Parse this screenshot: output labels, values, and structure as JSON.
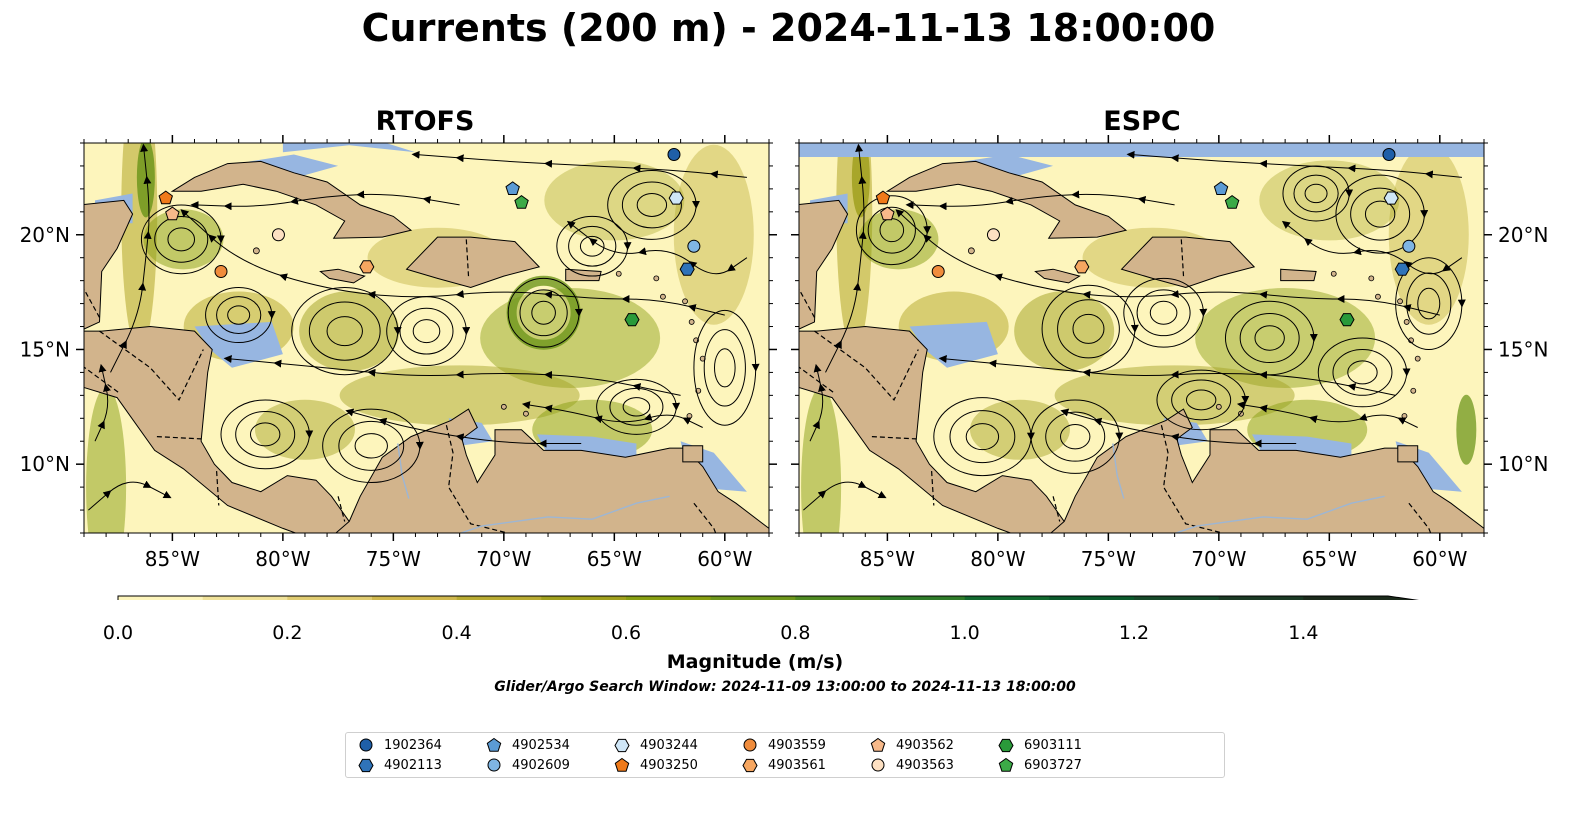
{
  "title": "Currents (200 m) - 2024-11-13 18:00:00",
  "panels": [
    {
      "title": "RTOFS"
    },
    {
      "title": "ESPC"
    }
  ],
  "map": {
    "lon_range": [
      -89,
      -58
    ],
    "lat_range": [
      7,
      24
    ],
    "lon_ticks": [
      "85°W",
      "80°W",
      "75°W",
      "70°W",
      "65°W",
      "60°W"
    ],
    "lat_ticks": [
      "20°N",
      "15°N",
      "10°N"
    ],
    "land_color": "#d2b48c",
    "shelf_color": "#97b6e1",
    "ocean_low_color": "#fdf5bc"
  },
  "colorbar": {
    "label": "Magnitude (m/s)",
    "ticks": [
      "0.0",
      "0.2",
      "0.4",
      "0.6",
      "0.8",
      "1.0",
      "1.2",
      "1.4"
    ],
    "range": [
      0,
      1.5
    ],
    "extend": "max",
    "colors": [
      "#fdf5bc",
      "#f0e29a",
      "#e0cc72",
      "#d0b84e",
      "#b8ab33",
      "#a0a01e",
      "#879e12",
      "#6e961c",
      "#4f8a22",
      "#2f7c2a",
      "#12692f",
      "#0c5a2c",
      "#174a2a",
      "#1b3a25",
      "#1c2b1c"
    ]
  },
  "search_window": "Glider/Argo Search Window: 2024-11-09 13:00:00 to 2024-11-13 18:00:00",
  "legend": [
    {
      "id": "1902364",
      "marker": "circle",
      "color": "#1f5fa8"
    },
    {
      "id": "4902113",
      "marker": "hexagon",
      "color": "#2f73b9"
    },
    {
      "id": "4902534",
      "marker": "pentagon",
      "color": "#5b9bd5"
    },
    {
      "id": "4902609",
      "marker": "circle",
      "color": "#7fb5e3"
    },
    {
      "id": "4903244",
      "marker": "hexagon",
      "color": "#cfe6f7"
    },
    {
      "id": "4903250",
      "marker": "pentagon",
      "color": "#f07a1a"
    },
    {
      "id": "4903559",
      "marker": "circle",
      "color": "#f08c3c"
    },
    {
      "id": "4903561",
      "marker": "hexagon",
      "color": "#f6a660"
    },
    {
      "id": "4903562",
      "marker": "pentagon",
      "color": "#f7b98a"
    },
    {
      "id": "4903563",
      "marker": "circle",
      "color": "#fde0c2"
    },
    {
      "id": "6903111",
      "marker": "hexagon",
      "color": "#2a9a3a"
    },
    {
      "id": "6903727",
      "marker": "pentagon",
      "color": "#3caa47"
    }
  ],
  "floats": {
    "RTOFS": [
      {
        "id": "1902364",
        "lon": -62.3,
        "lat": 23.5
      },
      {
        "id": "4903244",
        "lon": -62.2,
        "lat": 21.6
      },
      {
        "id": "4902534",
        "lon": -69.6,
        "lat": 22.0
      },
      {
        "id": "6903727",
        "lon": -69.2,
        "lat": 21.4
      },
      {
        "id": "4903250",
        "lon": -85.3,
        "lat": 21.6
      },
      {
        "id": "4903562",
        "lon": -85.0,
        "lat": 20.9
      },
      {
        "id": "4903563",
        "lon": -80.2,
        "lat": 20.0
      },
      {
        "id": "4903559",
        "lon": -82.8,
        "lat": 18.4
      },
      {
        "id": "4903561",
        "lon": -76.2,
        "lat": 18.6
      },
      {
        "id": "4902609",
        "lon": -61.4,
        "lat": 19.5
      },
      {
        "id": "4902113",
        "lon": -61.7,
        "lat": 18.5
      },
      {
        "id": "6903111",
        "lon": -64.2,
        "lat": 16.3
      }
    ],
    "ESPC": [
      {
        "id": "1902364",
        "lon": -62.3,
        "lat": 23.5
      },
      {
        "id": "4903244",
        "lon": -62.2,
        "lat": 21.6
      },
      {
        "id": "4902534",
        "lon": -69.9,
        "lat": 22.0
      },
      {
        "id": "6903727",
        "lon": -69.4,
        "lat": 21.4
      },
      {
        "id": "4903250",
        "lon": -85.2,
        "lat": 21.6
      },
      {
        "id": "4903562",
        "lon": -85.0,
        "lat": 20.9
      },
      {
        "id": "4903563",
        "lon": -80.2,
        "lat": 20.0
      },
      {
        "id": "4903559",
        "lon": -82.7,
        "lat": 18.4
      },
      {
        "id": "4903561",
        "lon": -76.2,
        "lat": 18.6
      },
      {
        "id": "4902609",
        "lon": -61.4,
        "lat": 19.5
      },
      {
        "id": "4902113",
        "lon": -61.7,
        "lat": 18.5
      },
      {
        "id": "6903111",
        "lon": -64.2,
        "lat": 16.3
      }
    ]
  }
}
